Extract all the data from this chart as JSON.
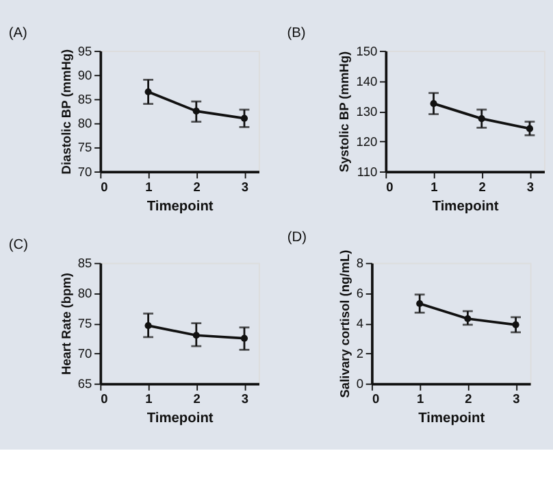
{
  "chart_data": [
    {
      "type": "line",
      "title": "(A)",
      "xlabel": "Timepoint",
      "ylabel": "Diastolic BP (mmHg)",
      "x": [
        1,
        2,
        3
      ],
      "values": [
        86.5,
        82.5,
        81
      ],
      "errors": [
        [
          84,
          89
        ],
        [
          80.3,
          84.5
        ],
        [
          79.2,
          82.8
        ]
      ],
      "color": "#111111",
      "marker": "circle",
      "xlim": [
        0,
        3.3
      ],
      "xticks": [
        0,
        1,
        2,
        3
      ],
      "ylim": [
        70,
        95
      ],
      "yticks": [
        70,
        75,
        80,
        85,
        90,
        95
      ],
      "grid": false
    },
    {
      "type": "line",
      "title": "(B)",
      "xlabel": "Timepoint",
      "ylabel": "Systolic BP (mmHg)",
      "x": [
        1,
        2,
        3
      ],
      "values": [
        132.5,
        127.5,
        124.2
      ],
      "errors": [
        [
          129,
          136
        ],
        [
          124.5,
          130.5
        ],
        [
          122,
          126.5
        ]
      ],
      "color": "#111111",
      "marker": "circle",
      "xlim": [
        0,
        3.3
      ],
      "xticks": [
        0,
        1,
        2,
        3
      ],
      "ylim": [
        110,
        150
      ],
      "yticks": [
        110,
        120,
        130,
        140,
        150
      ],
      "grid": false
    },
    {
      "type": "line",
      "title": "(C)",
      "xlabel": "Timepoint",
      "ylabel": "Heart Rate (bpm)",
      "x": [
        1,
        2,
        3
      ],
      "values": [
        74.6,
        73,
        72.5
      ],
      "errors": [
        [
          72.7,
          76.6
        ],
        [
          71.2,
          75
        ],
        [
          70.6,
          74.3
        ]
      ],
      "color": "#111111",
      "marker": "circle",
      "xlim": [
        0,
        3.3
      ],
      "xticks": [
        0,
        1,
        2,
        3
      ],
      "ylim": [
        65,
        85
      ],
      "yticks": [
        65,
        70,
        75,
        80,
        85
      ],
      "grid": false
    },
    {
      "type": "line",
      "title": "(D)",
      "xlabel": "Timepoint",
      "ylabel": "Salivary cortisol (ng/mL)",
      "x": [
        1,
        2,
        3
      ],
      "values": [
        5.3,
        4.3,
        3.9
      ],
      "errors": [
        [
          4.7,
          5.9
        ],
        [
          3.9,
          4.8
        ],
        [
          3.4,
          4.4
        ]
      ],
      "color": "#111111",
      "marker": "circle",
      "xlim": [
        0,
        3.3
      ],
      "xticks": [
        0,
        1,
        2,
        3
      ],
      "ylim": [
        0,
        8
      ],
      "yticks": [
        0,
        2,
        4,
        6,
        8
      ],
      "grid": false
    }
  ]
}
